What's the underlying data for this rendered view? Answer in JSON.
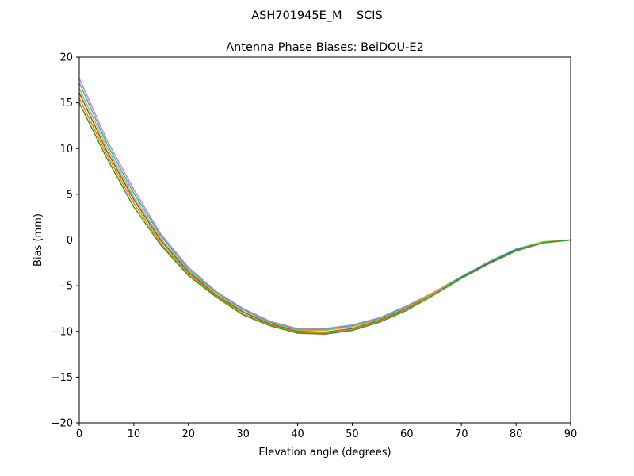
{
  "chart_data": {
    "type": "line",
    "suptitle": "ASH701945E_M    SCIS",
    "title": "Antenna Phase Biases: BeiDOU-E2",
    "xlabel": "Elevation angle (degrees)",
    "ylabel": "Bias (mm)",
    "xlim": [
      0,
      90
    ],
    "ylim": [
      -20,
      20
    ],
    "xticks": [
      0,
      10,
      20,
      30,
      40,
      50,
      60,
      70,
      80,
      90
    ],
    "yticks": [
      -20,
      -15,
      -10,
      -5,
      0,
      5,
      10,
      15,
      20
    ],
    "grid": false,
    "x": [
      0,
      5,
      10,
      15,
      20,
      25,
      30,
      35,
      40,
      45,
      50,
      55,
      60,
      65,
      70,
      75,
      80,
      85,
      90
    ],
    "series": [
      {
        "color": "#e377c2",
        "values": [
          17.7,
          11.0,
          5.5,
          0.6,
          -3.0,
          -5.6,
          -7.5,
          -8.9,
          -9.7,
          -9.7,
          -9.3,
          -8.5,
          -7.2,
          -5.7,
          -4.0,
          -2.4,
          -1.0,
          -0.2,
          0
        ]
      },
      {
        "color": "#17becf",
        "values": [
          17.2,
          10.6,
          5.1,
          0.4,
          -3.2,
          -5.7,
          -7.6,
          -9.0,
          -9.8,
          -9.8,
          -9.4,
          -8.6,
          -7.3,
          -5.8,
          -4.0,
          -2.4,
          -1.0,
          -0.2,
          0
        ]
      },
      {
        "color": "#bcbd22",
        "values": [
          16.6,
          10.2,
          4.7,
          0.1,
          -3.4,
          -5.8,
          -7.8,
          -9.1,
          -9.9,
          -9.9,
          -9.5,
          -8.7,
          -7.4,
          -5.8,
          -4.1,
          -2.5,
          -1.1,
          -0.2,
          0
        ]
      },
      {
        "color": "#8c564b",
        "values": [
          16.1,
          9.8,
          4.4,
          -0.1,
          -3.5,
          -6.0,
          -7.9,
          -9.2,
          -10.0,
          -10.1,
          -9.7,
          -8.8,
          -7.5,
          -5.9,
          -4.1,
          -2.5,
          -1.1,
          -0.3,
          0
        ]
      },
      {
        "color": "#ff7f0e",
        "values": [
          15.5,
          9.4,
          4.0,
          -0.4,
          -3.7,
          -6.1,
          -8.1,
          -9.3,
          -10.1,
          -10.2,
          -9.8,
          -8.9,
          -7.6,
          -5.9,
          -4.2,
          -2.6,
          -1.2,
          -0.3,
          0
        ]
      },
      {
        "color": "#2ca02c",
        "values": [
          15.0,
          9.0,
          3.6,
          -0.6,
          -3.9,
          -6.2,
          -8.2,
          -9.4,
          -10.2,
          -10.3,
          -9.9,
          -9.0,
          -7.7,
          -6.0,
          -4.2,
          -2.6,
          -1.2,
          -0.3,
          0
        ]
      }
    ]
  }
}
